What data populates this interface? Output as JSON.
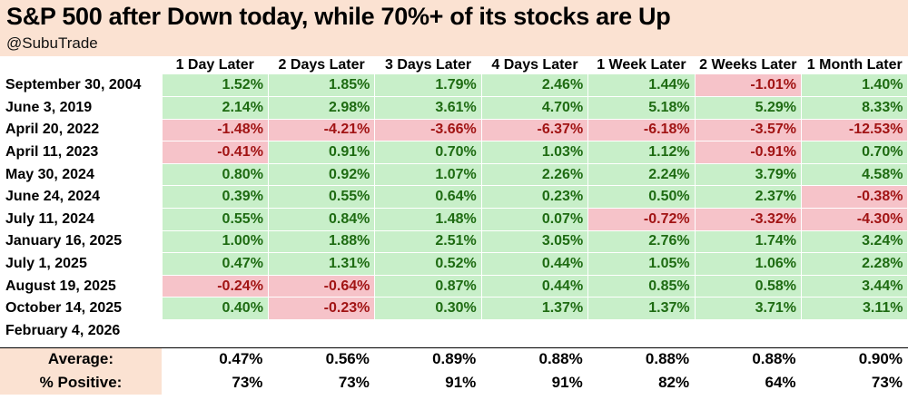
{
  "header": {
    "title": "S&P 500 after Down today, while 70%+ of its stocks are Up",
    "handle": "@SubuTrade"
  },
  "chart_data": {
    "type": "table",
    "columns": [
      "1 Day Later",
      "2 Days Later",
      "3 Days Later",
      "4 Days Later",
      "1 Week Later",
      "2 Weeks Later",
      "1 Month Later"
    ],
    "rows": [
      {
        "date": "September 30, 2004",
        "values": [
          "1.52%",
          "1.85%",
          "1.79%",
          "2.46%",
          "1.44%",
          "-1.01%",
          "1.40%"
        ]
      },
      {
        "date": "June 3, 2019",
        "values": [
          "2.14%",
          "2.98%",
          "3.61%",
          "4.70%",
          "5.18%",
          "5.29%",
          "8.33%"
        ]
      },
      {
        "date": "April 20, 2022",
        "values": [
          "-1.48%",
          "-4.21%",
          "-3.66%",
          "-6.37%",
          "-6.18%",
          "-3.57%",
          "-12.53%"
        ]
      },
      {
        "date": "April 11, 2023",
        "values": [
          "-0.41%",
          "0.91%",
          "0.70%",
          "1.03%",
          "1.12%",
          "-0.91%",
          "0.70%"
        ]
      },
      {
        "date": "May 30, 2024",
        "values": [
          "0.80%",
          "0.92%",
          "1.07%",
          "2.26%",
          "2.24%",
          "3.79%",
          "4.58%"
        ]
      },
      {
        "date": "June 24, 2024",
        "values": [
          "0.39%",
          "0.55%",
          "0.64%",
          "0.23%",
          "0.50%",
          "2.37%",
          "-0.38%"
        ]
      },
      {
        "date": "July 11, 2024",
        "values": [
          "0.55%",
          "0.84%",
          "1.48%",
          "0.07%",
          "-0.72%",
          "-3.32%",
          "-4.30%"
        ]
      },
      {
        "date": "January 16, 2025",
        "values": [
          "1.00%",
          "1.88%",
          "2.51%",
          "3.05%",
          "2.76%",
          "1.74%",
          "3.24%"
        ]
      },
      {
        "date": "July 1, 2025",
        "values": [
          "0.47%",
          "1.31%",
          "0.52%",
          "0.44%",
          "1.05%",
          "1.06%",
          "2.28%"
        ]
      },
      {
        "date": "August 19, 2025",
        "values": [
          "-0.24%",
          "-0.64%",
          "0.87%",
          "0.44%",
          "0.85%",
          "0.58%",
          "3.44%"
        ]
      },
      {
        "date": "October 14, 2025",
        "values": [
          "0.40%",
          "-0.23%",
          "0.30%",
          "1.37%",
          "1.37%",
          "3.71%",
          "3.11%"
        ]
      },
      {
        "date": "February 4, 2026",
        "values": [
          "",
          "",
          "",
          "",
          "",
          "",
          ""
        ]
      }
    ],
    "summary": [
      {
        "label": "Average:",
        "values": [
          "0.47%",
          "0.56%",
          "0.89%",
          "0.88%",
          "0.88%",
          "0.88%",
          "0.90%"
        ]
      },
      {
        "label": "% Positive:",
        "values": [
          "73%",
          "73%",
          "91%",
          "91%",
          "82%",
          "64%",
          "73%"
        ]
      }
    ],
    "colors": {
      "positive_fill": "#c8efc9",
      "positive_text": "#1e6b12",
      "negative_fill": "#f6c3c9",
      "negative_text": "#a11414",
      "header_fill": "#fbe2d2"
    }
  }
}
